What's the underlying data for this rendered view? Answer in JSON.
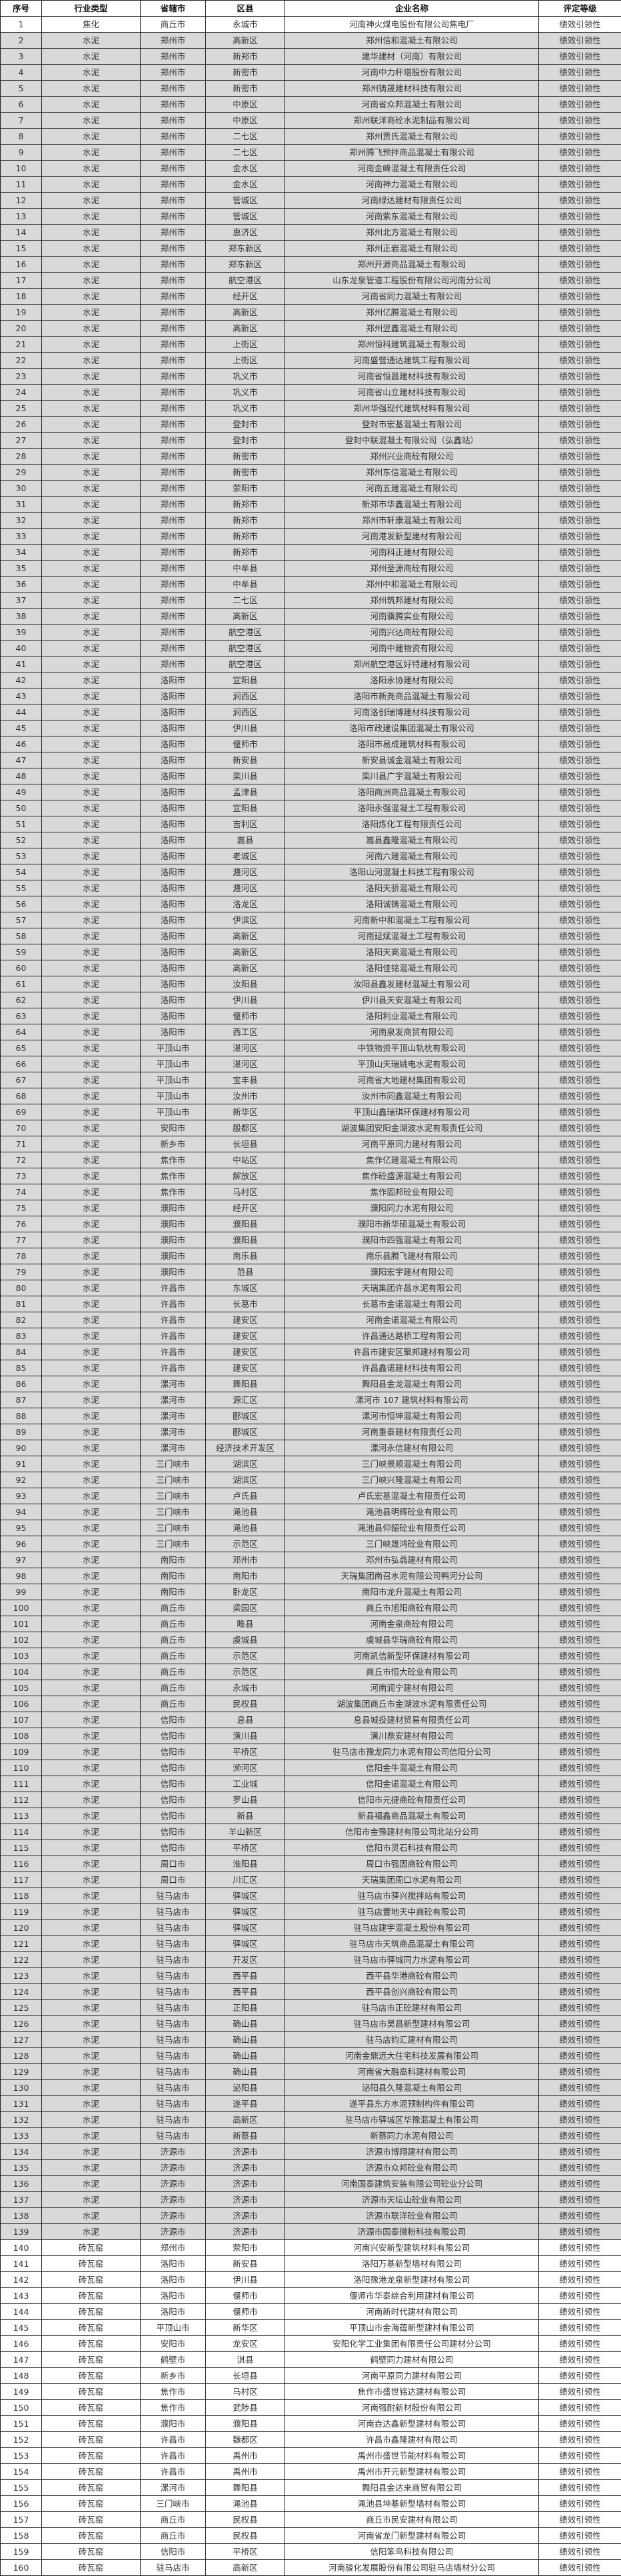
{
  "headers": [
    "序号",
    "行业类型",
    "省辖市",
    "区县",
    "企业名称",
    "评定等级"
  ],
  "shading": {
    "shaded_bg": "#d9d9d9",
    "plain_bg": "#ffffff"
  },
  "rows": [
    [
      "1",
      "焦化",
      "商丘市",
      "永城市",
      "河南神火煤电股份有限公司焦电厂",
      "绩效引领性"
    ],
    [
      "2",
      "水泥",
      "郑州市",
      "高新区",
      "郑州信和混凝土有限公司",
      "绩效引领性"
    ],
    [
      "3",
      "水泥",
      "郑州市",
      "新郑市",
      "建华建材（河南）有限公司",
      "绩效引领性"
    ],
    [
      "4",
      "水泥",
      "郑州市",
      "新密市",
      "河南中力杆塔股份有限公司",
      "绩效引领性"
    ],
    [
      "5",
      "水泥",
      "郑州市",
      "新密市",
      "郑州铸晟建材科技有限公司",
      "绩效引领性"
    ],
    [
      "6",
      "水泥",
      "郑州市",
      "中原区",
      "河南省众邦混凝土有限公司",
      "绩效引领性"
    ],
    [
      "7",
      "水泥",
      "郑州市",
      "中原区",
      "郑州联洋商砼水泥制品有限公司",
      "绩效引领性"
    ],
    [
      "8",
      "水泥",
      "郑州市",
      "二七区",
      "郑州贾氏混凝土有限公司",
      "绩效引领性"
    ],
    [
      "9",
      "水泥",
      "郑州市",
      "二七区",
      "郑州腾飞预拌商品混凝土有限公司",
      "绩效引领性"
    ],
    [
      "10",
      "水泥",
      "郑州市",
      "金水区",
      "河南金峰混凝土有限责任公司",
      "绩效引领性"
    ],
    [
      "11",
      "水泥",
      "郑州市",
      "金水区",
      "河南神力混凝土有限公司",
      "绩效引领性"
    ],
    [
      "12",
      "水泥",
      "郑州市",
      "管城区",
      "河南绿达建材有限责任公司",
      "绩效引领性"
    ],
    [
      "13",
      "水泥",
      "郑州市",
      "管城区",
      "河南紫东混凝土有限公司",
      "绩效引领性"
    ],
    [
      "14",
      "水泥",
      "郑州市",
      "惠济区",
      "郑州北方混凝土有限公司",
      "绩效引领性"
    ],
    [
      "15",
      "水泥",
      "郑州市",
      "郑东新区",
      "郑州正岩混凝土有限公司",
      "绩效引领性"
    ],
    [
      "16",
      "水泥",
      "郑州市",
      "郑东新区",
      "郑州开源商品混凝土有限公司",
      "绩效引领性"
    ],
    [
      "17",
      "水泥",
      "郑州市",
      "航空港区",
      "山东龙泉管道工程股份有限公司河南分公司",
      "绩效引领性"
    ],
    [
      "18",
      "水泥",
      "郑州市",
      "经开区",
      "河南省同力混凝土有限公司",
      "绩效引领性"
    ],
    [
      "19",
      "水泥",
      "郑州市",
      "高新区",
      "郑州亿腾混凝土有限公司",
      "绩效引领性"
    ],
    [
      "20",
      "水泥",
      "郑州市",
      "高新区",
      "郑州翌鑫混凝土有限公司",
      "绩效引领性"
    ],
    [
      "21",
      "水泥",
      "郑州市",
      "上街区",
      "郑州恒科建筑混凝土有限公司",
      "绩效引领性"
    ],
    [
      "22",
      "水泥",
      "郑州市",
      "上街区",
      "河南盛营通达建筑工程有限公司",
      "绩效引领性"
    ],
    [
      "23",
      "水泥",
      "郑州市",
      "巩义市",
      "河南省恒昌建材科技有限公司",
      "绩效引领性"
    ],
    [
      "24",
      "水泥",
      "郑州市",
      "巩义市",
      "河南省山立建材科技有限公司",
      "绩效引领性"
    ],
    [
      "25",
      "水泥",
      "郑州市",
      "巩义市",
      "郑州华强现代建筑材料有限公司",
      "绩效引领性"
    ],
    [
      "26",
      "水泥",
      "郑州市",
      "登封市",
      "登封市宏基混凝土有限公司",
      "绩效引领性"
    ],
    [
      "27",
      "水泥",
      "郑州市",
      "登封市",
      "登封中联混凝土有限公司（弘鑫站）",
      "绩效引领性"
    ],
    [
      "28",
      "水泥",
      "郑州市",
      "新密市",
      "郑州兴业商砼有限公司",
      "绩效引领性"
    ],
    [
      "29",
      "水泥",
      "郑州市",
      "新密市",
      "郑州东信混凝土有限公司",
      "绩效引领性"
    ],
    [
      "30",
      "水泥",
      "郑州市",
      "荥阳市",
      "河南五建混凝土有限公司",
      "绩效引领性"
    ],
    [
      "31",
      "水泥",
      "郑州市",
      "新郑市",
      "新郑市华鑫混凝土有限公司",
      "绩效引领性"
    ],
    [
      "32",
      "水泥",
      "郑州市",
      "新郑市",
      "郑州市轩康混凝土有限公司",
      "绩效引领性"
    ],
    [
      "33",
      "水泥",
      "郑州市",
      "新郑市",
      "河南港发新型建材有限公司",
      "绩效引领性"
    ],
    [
      "34",
      "水泥",
      "郑州市",
      "新郑市",
      "河南科正建材有限公司",
      "绩效引领性"
    ],
    [
      "35",
      "水泥",
      "郑州市",
      "中牟县",
      "郑州圣源商砼有限公司",
      "绩效引领性"
    ],
    [
      "36",
      "水泥",
      "郑州市",
      "中牟县",
      "郑州中和混凝土有限公司",
      "绩效引领性"
    ],
    [
      "37",
      "水泥",
      "郑州市",
      "二七区",
      "郑州筑邦建材有限公司",
      "绩效引领性"
    ],
    [
      "38",
      "水泥",
      "郑州市",
      "高新区",
      "河南骥腾实业有限公司",
      "绩效引领性"
    ],
    [
      "39",
      "水泥",
      "郑州市",
      "航空港区",
      "河南兴达商砼有限公司",
      "绩效引领性"
    ],
    [
      "40",
      "水泥",
      "郑州市",
      "航空港区",
      "河南中建物资有限公司",
      "绩效引领性"
    ],
    [
      "41",
      "水泥",
      "郑州市",
      "航空港区",
      "郑州航空港区好特建材有限公司",
      "绩效引领性"
    ],
    [
      "42",
      "水泥",
      "洛阳市",
      "宜阳县",
      "洛阳永协建材有限公司",
      "绩效引领性"
    ],
    [
      "43",
      "水泥",
      "洛阳市",
      "涧西区",
      "洛阳市新尧商品混凝土有限公司",
      "绩效引领性"
    ],
    [
      "44",
      "水泥",
      "洛阳市",
      "涧西区",
      "河南洛创瑞博建材科技有限公司",
      "绩效引领性"
    ],
    [
      "45",
      "水泥",
      "洛阳市",
      "伊川县",
      "洛阳市政建设集团混凝土有限公司",
      "绩效引领性"
    ],
    [
      "46",
      "水泥",
      "洛阳市",
      "偃师市",
      "洛阳市易成建筑材料有限公司",
      "绩效引领性"
    ],
    [
      "47",
      "水泥",
      "洛阳市",
      "新安县",
      "新安县诚金混凝土有限公司",
      "绩效引领性"
    ],
    [
      "48",
      "水泥",
      "洛阳市",
      "栾川县",
      "栾川县广宇混凝土有限公司",
      "绩效引领性"
    ],
    [
      "49",
      "水泥",
      "洛阳市",
      "孟津县",
      "洛阳商洲商品混凝土有限公司",
      "绩效引领性"
    ],
    [
      "50",
      "水泥",
      "洛阳市",
      "宜阳县",
      "洛阳永强混凝土工程有限公司",
      "绩效引领性"
    ],
    [
      "51",
      "水泥",
      "洛阳市",
      "吉利区",
      "洛阳炼化工程有限责任公司",
      "绩效引领性"
    ],
    [
      "52",
      "水泥",
      "洛阳市",
      "嵩县",
      "嵩县鑫隆混凝土有限公司",
      "绩效引领性"
    ],
    [
      "53",
      "水泥",
      "洛阳市",
      "老城区",
      "河南六建混凝土有限公司",
      "绩效引领性"
    ],
    [
      "54",
      "水泥",
      "洛阳市",
      "瀍河区",
      "洛阳山河混凝土科技工程有限公司",
      "绩效引领性"
    ],
    [
      "55",
      "水泥",
      "洛阳市",
      "瀍河区",
      "洛阳天骄混凝土有限公司",
      "绩效引领性"
    ],
    [
      "56",
      "水泥",
      "洛阳市",
      "洛龙区",
      "洛阳诚铸混凝土有限公司",
      "绩效引领性"
    ],
    [
      "57",
      "水泥",
      "洛阳市",
      "伊滨区",
      "河南新中和混凝土工程有限公司",
      "绩效引领性"
    ],
    [
      "58",
      "水泥",
      "洛阳市",
      "高新区",
      "河南延斌混凝土工程有限公司",
      "绩效引领性"
    ],
    [
      "59",
      "水泥",
      "洛阳市",
      "高新区",
      "洛阳天高混凝土有限公司",
      "绩效引领性"
    ],
    [
      "60",
      "水泥",
      "洛阳市",
      "高新区",
      "洛阳佳铭混凝土有限公司",
      "绩效引领性"
    ],
    [
      "61",
      "水泥",
      "洛阳市",
      "汝阳县",
      "汝阳县鑫发建材混凝土有限公司",
      "绩效引领性"
    ],
    [
      "62",
      "水泥",
      "洛阳市",
      "伊川县",
      "伊川县天安混凝土有限公司",
      "绩效引领性"
    ],
    [
      "63",
      "水泥",
      "洛阳市",
      "偃师市",
      "洛阳利业混凝土有限公司",
      "绩效引领性"
    ],
    [
      "64",
      "水泥",
      "洛阳市",
      "西工区",
      "河南泉发商贸有限公司",
      "绩效引领性"
    ],
    [
      "65",
      "水泥",
      "平顶山市",
      "湛河区",
      "中铁物资平顶山轨枕有限公司",
      "绩效引领性"
    ],
    [
      "66",
      "水泥",
      "平顶山市",
      "湛河区",
      "平顶山天瑞姚电水泥有限公司",
      "绩效引领性"
    ],
    [
      "67",
      "水泥",
      "平顶山市",
      "宝丰县",
      "河南省大地建材集团有限公司",
      "绩效引领性"
    ],
    [
      "68",
      "水泥",
      "平顶山市",
      "汝州市",
      "汝州市同鑫混凝土有限公司",
      "绩效引领性"
    ],
    [
      "69",
      "水泥",
      "平顶山市",
      "新华区",
      "平顶山鑫瑞琪环保建材有限公司",
      "绩效引领性"
    ],
    [
      "70",
      "水泥",
      "安阳市",
      "殷都区",
      "湖波集团安阳金湖波水泥有限责任公司",
      "绩效引领性"
    ],
    [
      "71",
      "水泥",
      "新乡市",
      "长垣县",
      "河南平原同力建材有限公司",
      "绩效引领性"
    ],
    [
      "72",
      "水泥",
      "焦作市",
      "中站区",
      "焦作亿建混凝土有限公司",
      "绩效引领性"
    ],
    [
      "73",
      "水泥",
      "焦作市",
      "解放区",
      "焦作砼盛源混凝土有限公司",
      "绩效引领性"
    ],
    [
      "74",
      "水泥",
      "焦作市",
      "马村区",
      "焦作固邦砼业有限公司",
      "绩效引领性"
    ],
    [
      "75",
      "水泥",
      "濮阳市",
      "经开区",
      "濮阳同力水泥有限公司",
      "绩效引领性"
    ],
    [
      "76",
      "水泥",
      "濮阳市",
      "濮阳县",
      "濮阳市新华硕混凝土有限公司",
      "绩效引领性"
    ],
    [
      "77",
      "水泥",
      "濮阳市",
      "濮阳县",
      "濮阳市四强混凝土有限公司",
      "绩效引领性"
    ],
    [
      "78",
      "水泥",
      "濮阳市",
      "南乐县",
      "南乐县腾飞建材有限公司",
      "绩效引领性"
    ],
    [
      "79",
      "水泥",
      "濮阳市",
      "范县",
      "濮阳宏宇建材有限公司",
      "绩效引领性"
    ],
    [
      "80",
      "水泥",
      "许昌市",
      "东城区",
      "天瑞集团许昌水泥有限公司",
      "绩效引领性"
    ],
    [
      "81",
      "水泥",
      "许昌市",
      "长葛市",
      "长葛市金诺混凝土有限公司",
      "绩效引领性"
    ],
    [
      "82",
      "水泥",
      "许昌市",
      "建安区",
      "河南金诺混凝土有限公司",
      "绩效引领性"
    ],
    [
      "83",
      "水泥",
      "许昌市",
      "建安区",
      "许昌通达路桥工程有限公司",
      "绩效引领性"
    ],
    [
      "84",
      "水泥",
      "许昌市",
      "建安区",
      "许昌市建安区聚邦建材有限公司",
      "绩效引领性"
    ],
    [
      "85",
      "水泥",
      "许昌市",
      "建安区",
      "许昌鑫诺建材科技有限公司",
      "绩效引领性"
    ],
    [
      "86",
      "水泥",
      "漯河市",
      "舞阳县",
      "舞阳县金龙混凝土有限公司",
      "绩效引领性"
    ],
    [
      "87",
      "水泥",
      "漯河市",
      "源汇区",
      "漯河市 107 建筑材料有限公司",
      "绩效引领性"
    ],
    [
      "88",
      "水泥",
      "漯河市",
      "郾城区",
      "漯河市恒坤混凝土有限公司",
      "绩效引领性"
    ],
    [
      "89",
      "水泥",
      "漯河市",
      "郾城区",
      "河南重泰建材有限责任公司",
      "绩效引领性"
    ],
    [
      "90",
      "水泥",
      "漯河市",
      "经济技术开发区",
      "漯河永信建材有限公司",
      "绩效引领性"
    ],
    [
      "91",
      "水泥",
      "三门峡市",
      "湖滨区",
      "三门峡景顺混凝土有限公司",
      "绩效引领性"
    ],
    [
      "92",
      "水泥",
      "三门峡市",
      "湖滨区",
      "三门峡兴隆混凝土有限公司",
      "绩效引领性"
    ],
    [
      "93",
      "水泥",
      "三门峡市",
      "卢氏县",
      "卢氏宏基混凝土有限责任公司",
      "绩效引领性"
    ],
    [
      "94",
      "水泥",
      "三门峡市",
      "渑池县",
      "渑池县明辉砼业有限公司",
      "绩效引领性"
    ],
    [
      "95",
      "水泥",
      "三门峡市",
      "渑池县",
      "渑池县仰韶砼业有限责任公司",
      "绩效引领性"
    ],
    [
      "96",
      "水泥",
      "三门峡市",
      "示范区",
      "三门峡晟鸿砼业有限公司",
      "绩效引领性"
    ],
    [
      "97",
      "水泥",
      "南阳市",
      "邓州市",
      "邓州市弘骉建材有限公司",
      "绩效引领性"
    ],
    [
      "98",
      "水泥",
      "南阳市",
      "南阳市",
      "天瑞集团南召水泥有限公司鸭河分公司",
      "绩效引领性"
    ],
    [
      "99",
      "水泥",
      "南阳市",
      "卧龙区",
      "南阳市龙升混凝土有限公司",
      "绩效引领性"
    ],
    [
      "100",
      "水泥",
      "商丘市",
      "梁园区",
      "商丘市旭阳商砼有限公司",
      "绩效引领性"
    ],
    [
      "101",
      "水泥",
      "商丘市",
      "睢县",
      "河南金泉商砼有限公司",
      "绩效引领性"
    ],
    [
      "102",
      "水泥",
      "商丘市",
      "虞城县",
      "虞城县华瑞商砼有限公司",
      "绩效引领性"
    ],
    [
      "103",
      "水泥",
      "商丘市",
      "示范区",
      "河南凯信新型环保建材有限公司",
      "绩效引领性"
    ],
    [
      "104",
      "水泥",
      "商丘市",
      "示范区",
      "商丘市恒大砼业有限公司",
      "绩效引领性"
    ],
    [
      "105",
      "水泥",
      "商丘市",
      "永城市",
      "河南润宁建材有限公司",
      "绩效引领性"
    ],
    [
      "106",
      "水泥",
      "商丘市",
      "民权县",
      "湖波集团商丘市金湖波水泥有限责任公司",
      "绩效引领性"
    ],
    [
      "107",
      "水泥",
      "信阳市",
      "息县",
      "息县城投建材贸易有限责任公司",
      "绩效引领性"
    ],
    [
      "108",
      "水泥",
      "信阳市",
      "潢川县",
      "潢川鼎安建材有限公司",
      "绩效引领性"
    ],
    [
      "109",
      "水泥",
      "信阳市",
      "平桥区",
      "驻马店市豫龙同力水泥有限公司信阳分公司",
      "绩效引领性"
    ],
    [
      "110",
      "水泥",
      "信阳市",
      "浉河区",
      "信阳金牛混凝土有限公司",
      "绩效引领性"
    ],
    [
      "111",
      "水泥",
      "信阳市",
      "工业城",
      "信阳金诺混凝土有限公司",
      "绩效引领性"
    ],
    [
      "112",
      "水泥",
      "信阳市",
      "罗山县",
      "信阳市元捷商砼有限责任公司",
      "绩效引领性"
    ],
    [
      "113",
      "水泥",
      "信阳市",
      "新县",
      "新县福鑫商品混凝土有限公司",
      "绩效引领性"
    ],
    [
      "114",
      "水泥",
      "信阳市",
      "羊山新区",
      "信阳市金豫建材有限公司北站分公司",
      "绩效引领性"
    ],
    [
      "115",
      "水泥",
      "信阳市",
      "平桥区",
      "信阳市灵石科技有限公司",
      "绩效引领性"
    ],
    [
      "116",
      "水泥",
      "周口市",
      "淮阳县",
      "周口市强固商砼有限公司",
      "绩效引领性"
    ],
    [
      "117",
      "水泥",
      "周口市",
      "川汇区",
      "天瑞集团周口水泥有限公司",
      "绩效引领性"
    ],
    [
      "118",
      "水泥",
      "驻马店市",
      "驿城区",
      "驻马店市驿兴搅拌站有限公司",
      "绩效引领性"
    ],
    [
      "119",
      "水泥",
      "驻马店市",
      "驿城区",
      "驻马店置地天中商砼有限公司",
      "绩效引领性"
    ],
    [
      "120",
      "水泥",
      "驻马店市",
      "驿城区",
      "驻马店建宇混凝土股份有限公司",
      "绩效引领性"
    ],
    [
      "121",
      "水泥",
      "驻马店市",
      "驿城区",
      "驻马店市天筑商品混凝土有限公司",
      "绩效引领性"
    ],
    [
      "122",
      "水泥",
      "驻马店市",
      "开发区",
      "驻马店市驿城同力水泥有限公司",
      "绩效引领性"
    ],
    [
      "123",
      "水泥",
      "驻马店市",
      "西平县",
      "西平县华港商砼有限公司",
      "绩效引领性"
    ],
    [
      "124",
      "水泥",
      "驻马店市",
      "西平县",
      "西平县创兴商砼有限公司",
      "绩效引领性"
    ],
    [
      "125",
      "水泥",
      "驻马店市",
      "正阳县",
      "驻马店市正砼建材有限公司",
      "绩效引领性"
    ],
    [
      "126",
      "水泥",
      "驻马店市",
      "确山县",
      "驻马店市昊昌新型建材有限公司",
      "绩效引领性"
    ],
    [
      "127",
      "水泥",
      "驻马店市",
      "确山县",
      "驻马店钧汇建材有限公司",
      "绩效引领性"
    ],
    [
      "128",
      "水泥",
      "驻马店市",
      "确山县",
      "河南金鼎远大住宅科技发展有限公司",
      "绩效引领性"
    ],
    [
      "129",
      "水泥",
      "驻马店市",
      "确山县",
      "河南省大融高科建材有限公司",
      "绩效引领性"
    ],
    [
      "130",
      "水泥",
      "驻马店市",
      "泌阳县",
      "泌阳县久隆混凝土有限公司",
      "绩效引领性"
    ],
    [
      "131",
      "水泥",
      "驻马店市",
      "遂平县",
      "遂平县东方水泥预制构件有限公司",
      "绩效引领性"
    ],
    [
      "132",
      "水泥",
      "驻马店市",
      "高新区",
      "驻马店市驿城区华豫混凝土有限公司",
      "绩效引领性"
    ],
    [
      "133",
      "水泥",
      "驻马店市",
      "新蔡县",
      "新蔡同力水泥有限公司",
      "绩效引领性"
    ],
    [
      "134",
      "水泥",
      "济源市",
      "济源市",
      "济源市博翔建材有限公司",
      "绩效引领性"
    ],
    [
      "135",
      "水泥",
      "济源市",
      "济源市",
      "济源市众邦砼业有限公司",
      "绩效引领性"
    ],
    [
      "136",
      "水泥",
      "济源市",
      "济源市",
      "河南国泰建筑安装有限公司砼业分公司",
      "绩效引领性"
    ],
    [
      "137",
      "水泥",
      "济源市",
      "济源市",
      "济源市天坛山砼业有限公司",
      "绩效引领性"
    ],
    [
      "138",
      "水泥",
      "济源市",
      "济源市",
      "济源市联洋砼业有限公司",
      "绩效引领性"
    ],
    [
      "139",
      "水泥",
      "济源市",
      "济源市",
      "济源市国泰微粉科技有限公司",
      "绩效引领性"
    ],
    [
      "140",
      "砖瓦窑",
      "郑州市",
      "荥阳市",
      "河南兴安新型建筑材料有限公司",
      "绩效引领性"
    ],
    [
      "141",
      "砖瓦窑",
      "洛阳市",
      "新安县",
      "洛阳万基新型墙材有限公司",
      "绩效引领性"
    ],
    [
      "142",
      "砖瓦窑",
      "洛阳市",
      "伊川县",
      "洛阳豫港龙泉新型建材有限公司",
      "绩效引领性"
    ],
    [
      "143",
      "砖瓦窑",
      "洛阳市",
      "偃师市",
      "偃师市华泰综合利用建材有限公司",
      "绩效引领性"
    ],
    [
      "144",
      "砖瓦窑",
      "洛阳市",
      "偃师市",
      "河南新时代建材有限公司",
      "绩效引领性"
    ],
    [
      "145",
      "砖瓦窑",
      "平顶山市",
      "新华区",
      "平顶山市金海蕴新型建材有限公司",
      "绩效引领性"
    ],
    [
      "146",
      "砖瓦窑",
      "安阳市",
      "龙安区",
      "安阳化学工业集团有限责任公司建材分公司",
      "绩效引领性"
    ],
    [
      "147",
      "砖瓦窑",
      "鹤壁市",
      "淇县",
      "鹤壁同力建材有限公司",
      "绩效引领性"
    ],
    [
      "148",
      "砖瓦窑",
      "新乡市",
      "长垣县",
      "河南平原同力建材有限公司",
      "绩效引领性"
    ],
    [
      "149",
      "砖瓦窑",
      "焦作市",
      "马村区",
      "焦作市盛世铭达建材有限公司",
      "绩效引领性"
    ],
    [
      "150",
      "砖瓦窑",
      "焦作市",
      "武陟县",
      "河南强耐新材股份有限公司",
      "绩效引领性"
    ],
    [
      "151",
      "砖瓦窑",
      "濮阳市",
      "濮阳县",
      "河南垚达鑫新型建材有限公司",
      "绩效引领性"
    ],
    [
      "152",
      "砖瓦窑",
      "许昌市",
      "魏都区",
      "许昌市鑫隆建材有限公司",
      "绩效引领性"
    ],
    [
      "153",
      "砖瓦窑",
      "许昌市",
      "禹州市",
      "禹州市盛世节能材料有限公司",
      "绩效引领性"
    ],
    [
      "154",
      "砖瓦窑",
      "许昌市",
      "禹州市",
      "禹州市开元新型建材有限公司",
      "绩效引领性"
    ],
    [
      "155",
      "砖瓦窑",
      "漯河市",
      "舞阳县",
      "舞阳县金达来商贸有限公司",
      "绩效引领性"
    ],
    [
      "156",
      "砖瓦窑",
      "三门峡市",
      "渑池县",
      "渑池县坤基新型墙材有限公司",
      "绩效引领性"
    ],
    [
      "157",
      "砖瓦窑",
      "商丘市",
      "民权县",
      "商丘市民安建材有限公司",
      "绩效引领性"
    ],
    [
      "158",
      "砖瓦窑",
      "商丘市",
      "民权县",
      "河南省龙门新型建材有限公司",
      "绩效引领性"
    ],
    [
      "159",
      "砖瓦窑",
      "信阳市",
      "平桥区",
      "信阳笨鸟科技有限公司",
      "绩效引领性"
    ],
    [
      "160",
      "砖瓦窑",
      "驻马店市",
      "高新区",
      "河南骏化发展股份有限公司驻马店墙材分公司",
      "绩效引领性"
    ]
  ]
}
